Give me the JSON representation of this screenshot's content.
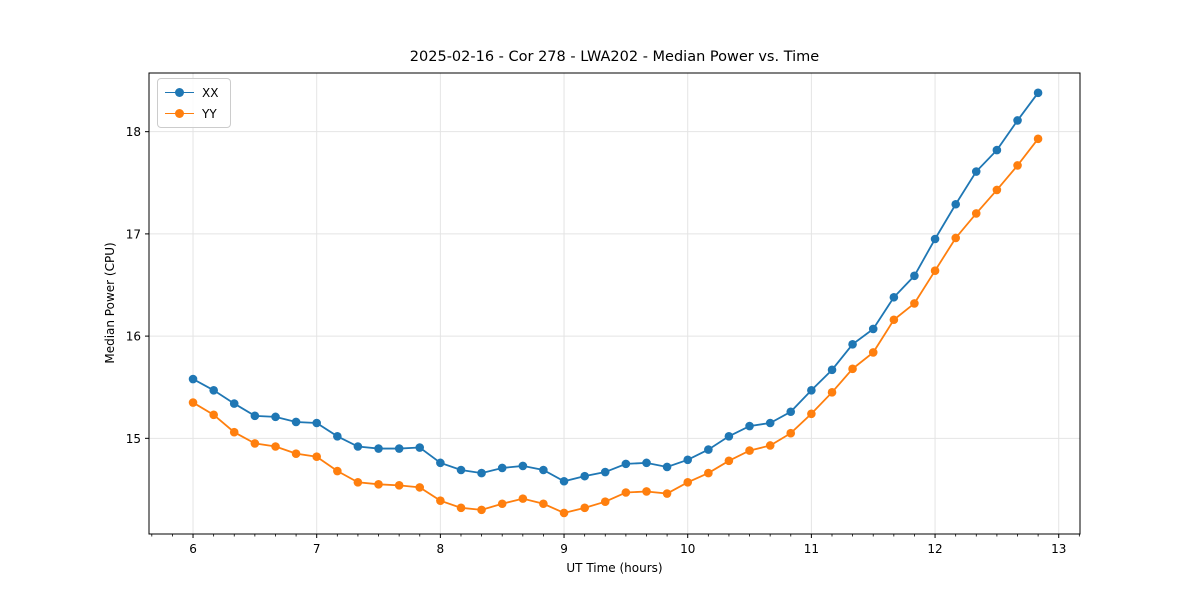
{
  "chart_data": {
    "type": "line",
    "title": "2025-02-16 - Cor 278 - LWA202 - Median Power vs. Time",
    "xlabel": "UT Time (hours)",
    "ylabel": "Median Power (CPU)",
    "xlim": [
      5.644,
      13.172
    ],
    "ylim": [
      14.064,
      18.574
    ],
    "xticks": [
      6,
      7,
      8,
      9,
      10,
      11,
      12,
      13
    ],
    "yticks": [
      15,
      16,
      17,
      18
    ],
    "x_minor_tick_step_hours": 0.1667,
    "grid": true,
    "legend_position": "upper-left",
    "background_color": "#ffffff",
    "grid_color": "#e4e4e4",
    "spine_color": "#000000",
    "x": [
      6.0,
      6.167,
      6.333,
      6.5,
      6.667,
      6.833,
      7.0,
      7.167,
      7.333,
      7.5,
      7.667,
      7.833,
      8.0,
      8.167,
      8.333,
      8.5,
      8.667,
      8.833,
      9.0,
      9.167,
      9.333,
      9.5,
      9.667,
      9.833,
      10.0,
      10.167,
      10.333,
      10.5,
      10.667,
      10.833,
      11.0,
      11.167,
      11.333,
      11.5,
      11.667,
      11.833,
      12.0,
      12.167,
      12.333,
      12.5,
      12.667,
      12.833
    ],
    "series": [
      {
        "name": "XX",
        "color": "#1f77b4",
        "values": [
          15.58,
          15.47,
          15.34,
          15.22,
          15.21,
          15.16,
          15.15,
          15.02,
          14.92,
          14.9,
          14.9,
          14.91,
          14.76,
          14.69,
          14.66,
          14.71,
          14.73,
          14.69,
          14.58,
          14.63,
          14.67,
          14.75,
          14.76,
          14.72,
          14.79,
          14.89,
          15.02,
          15.12,
          15.15,
          15.26,
          15.47,
          15.67,
          15.92,
          16.07,
          16.38,
          16.59,
          16.95,
          17.29,
          17.61,
          17.82,
          18.11,
          18.38
        ]
      },
      {
        "name": "YY",
        "color": "#ff7f0e",
        "values": [
          15.35,
          15.23,
          15.06,
          14.95,
          14.92,
          14.85,
          14.82,
          14.68,
          14.57,
          14.55,
          14.54,
          14.52,
          14.39,
          14.32,
          14.3,
          14.36,
          14.41,
          14.36,
          14.27,
          14.32,
          14.38,
          14.47,
          14.48,
          14.46,
          14.57,
          14.66,
          14.78,
          14.88,
          14.93,
          15.05,
          15.24,
          15.45,
          15.68,
          15.84,
          16.16,
          16.32,
          16.64,
          16.96,
          17.2,
          17.43,
          17.67,
          17.93
        ]
      }
    ]
  }
}
